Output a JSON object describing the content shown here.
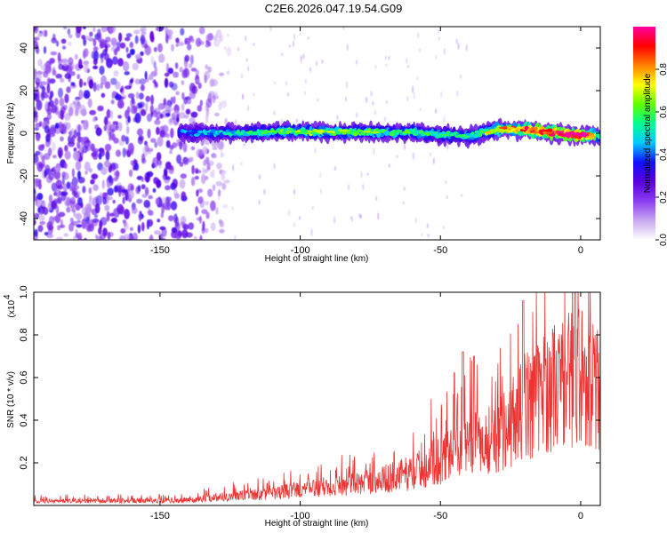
{
  "title": "C2E6.2026.047.19.54.G09",
  "chart_data": [
    {
      "type": "heatmap",
      "name": "spectrogram",
      "xlabel": "Height of straight line (km)",
      "ylabel": "Frequency (Hz)",
      "xlim": [
        -195,
        7
      ],
      "ylim": [
        -50,
        50
      ],
      "xticks": [
        -150,
        -100,
        -50,
        0
      ],
      "xtick_labels": [
        "-150",
        "-100",
        "-50",
        "0"
      ],
      "yticks": [
        -40,
        -20,
        0,
        20,
        40
      ],
      "ytick_labels": [
        "-40",
        "-20",
        "0",
        "20",
        "40"
      ],
      "colorbar": {
        "label": "Normalized spectral amplitude",
        "range": [
          0,
          1
        ],
        "ticks": [
          0.0,
          0.2,
          0.4,
          0.6,
          0.8
        ],
        "tick_labels": [
          "0.0",
          "0.2",
          "0.4",
          "0.6",
          "0.8"
        ],
        "colors": [
          "#ffffff",
          "#c8a8f0",
          "#8a3cf0",
          "#5a00e0",
          "#1010ff",
          "#00c8ff",
          "#00ff90",
          "#60ff00",
          "#ffff00",
          "#ff8000",
          "#ff0000",
          "#ff00a0"
        ]
      },
      "ridge": {
        "x_start": -143,
        "x_end": 7,
        "freq_hz": [
          [
            -140,
            0.0
          ],
          [
            -100,
            0.8
          ],
          [
            -60,
            0.3
          ],
          [
            -40,
            -1.5
          ],
          [
            -30,
            2.0
          ],
          [
            -20,
            1.5
          ],
          [
            0,
            -1.0
          ],
          [
            7,
            -1.0
          ]
        ],
        "amplitude": [
          [
            -140,
            0.35
          ],
          [
            -100,
            0.55
          ],
          [
            -80,
            0.5
          ],
          [
            -40,
            0.45
          ],
          [
            -25,
            0.7
          ],
          [
            -5,
            0.9
          ],
          [
            0,
            0.95
          ],
          [
            7,
            0.5
          ]
        ]
      },
      "noise_region": {
        "x_start": -195,
        "x_end": -125
      }
    },
    {
      "type": "line",
      "name": "snr",
      "xlabel": "Height of straight line (km)",
      "ylabel": "SNR (10 * v/v)",
      "scale_label": "(x10",
      "scale_exponent": "4",
      "xlim": [
        -195,
        7
      ],
      "ylim": [
        0,
        1.0
      ],
      "xticks": [
        -150,
        -100,
        -50,
        0
      ],
      "xtick_labels": [
        "-150",
        "-100",
        "-50",
        "0"
      ],
      "yticks": [
        0.2,
        0.4,
        0.6,
        0.8,
        1.0
      ],
      "ytick_labels": [
        "0.2",
        "0.4",
        "0.6",
        "0.8",
        "1.0"
      ],
      "color": "#ee3333",
      "envelope": [
        [
          -195,
          0.025
        ],
        [
          -140,
          0.03
        ],
        [
          -130,
          0.05
        ],
        [
          -110,
          0.07
        ],
        [
          -100,
          0.1
        ],
        [
          -80,
          0.13
        ],
        [
          -70,
          0.16
        ],
        [
          -60,
          0.2
        ],
        [
          -50,
          0.28
        ],
        [
          -40,
          0.35
        ],
        [
          -30,
          0.42
        ],
        [
          -25,
          0.5
        ],
        [
          -20,
          0.6
        ],
        [
          -10,
          0.72
        ],
        [
          0,
          0.8
        ],
        [
          7,
          0.68
        ]
      ],
      "peaks": [
        [
          -42,
          0.72
        ],
        [
          -38,
          0.7
        ],
        [
          -20.5,
          0.96
        ],
        [
          -2,
          1.0
        ]
      ]
    }
  ]
}
